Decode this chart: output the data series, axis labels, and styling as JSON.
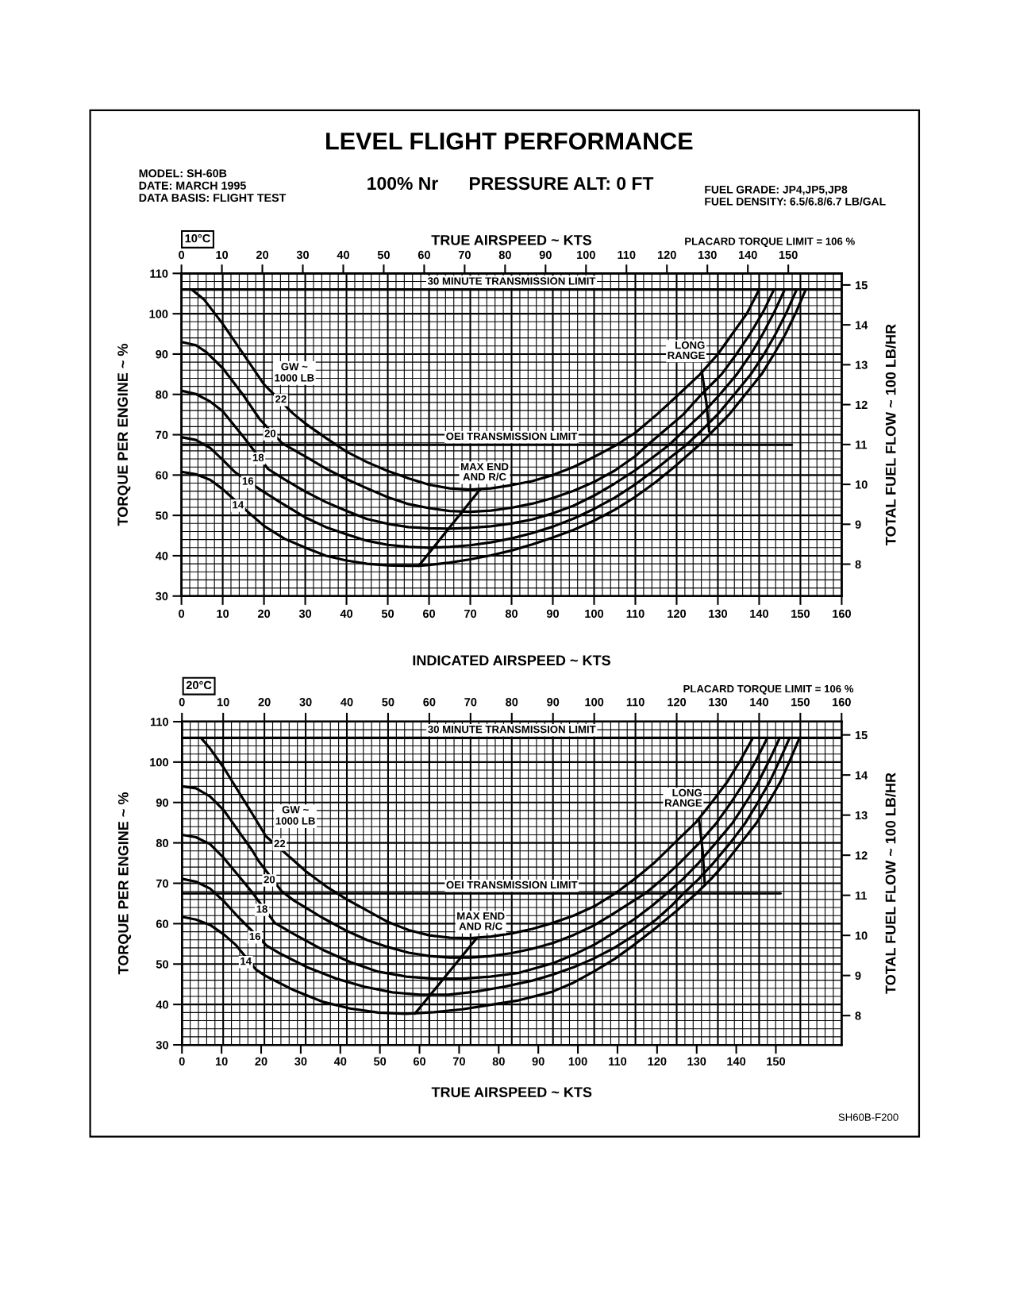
{
  "chart_data": [
    {
      "type": "line",
      "title": "LEVEL FLIGHT PERFORMANCE",
      "subtitle": "100% Nr      PRESSURE ALT: 0 FT",
      "xlabel": "INDICATED AIRSPEED ~ KTS",
      "x2label": "TRUE AIRSPEED ~ KTS",
      "ylabel": "TORQUE PER ENGINE ~ %",
      "y2label": "TOTAL FUEL FLOW ~ 100 LB/HR",
      "xlim": [
        0,
        160
      ],
      "xticks": [
        0,
        10,
        20,
        30,
        40,
        50,
        60,
        70,
        80,
        90,
        100,
        110,
        120,
        130,
        140,
        150,
        160
      ],
      "x2lim": [
        0,
        163.2
      ],
      "x2ticks": [
        0,
        10,
        20,
        30,
        40,
        50,
        60,
        70,
        80,
        90,
        100,
        110,
        120,
        130,
        140,
        150
      ],
      "ylim": [
        30,
        110
      ],
      "yticks": [
        30,
        40,
        50,
        60,
        70,
        80,
        90,
        100,
        110
      ],
      "y2lim": [
        7.2,
        15.29
      ],
      "y2ticks": [
        8,
        9,
        10,
        11,
        12,
        13,
        14,
        15
      ],
      "grid": true,
      "ref_lines": [
        {
          "axis": "y",
          "value": 106,
          "label": "30 MINUTE TRANSMISSION LIMIT",
          "color": "#000000"
        }
      ],
      "series": [
        {
          "color": "#000000",
          "x": [
            0,
            3.5,
            7,
            10,
            11.2,
            16.3,
            20,
            25,
            30,
            35,
            40,
            45,
            50,
            55,
            57.5,
            60,
            65,
            70,
            75,
            80,
            85,
            90,
            95,
            100,
            105,
            110,
            115,
            120,
            125.5,
            128.7,
            132.7,
            136.5,
            140.6,
            143.6,
            146.4,
            149,
            151.3
          ],
          "values": [
            60.8,
            60.2,
            58.8,
            56.5,
            55.4,
            50.7,
            47.4,
            44.2,
            42,
            40,
            38.8,
            38,
            37.6,
            37.5,
            37.5,
            37.7,
            38.3,
            39.1,
            40.1,
            41.3,
            42.8,
            44.5,
            46.4,
            48.7,
            51.4,
            54.6,
            58.3,
            62.5,
            67.5,
            70.8,
            75,
            79.8,
            85,
            90,
            95,
            100.5,
            106
          ]
        },
        {
          "color": "#000000",
          "x": [
            0,
            3.5,
            7,
            10,
            13,
            19.2,
            24,
            30,
            35,
            40,
            45,
            50,
            55,
            60,
            65,
            70,
            75,
            80,
            85,
            90,
            95,
            100,
            105,
            110,
            115,
            119,
            122.4,
            126,
            129.9,
            134,
            138,
            141.2,
            144,
            146.7,
            149.1
          ],
          "values": [
            69.4,
            68.7,
            66.7,
            63.8,
            60.7,
            56.3,
            53.2,
            49.5,
            47.1,
            45.3,
            43.7,
            42.7,
            42.2,
            42.0,
            42.2,
            42.6,
            43.3,
            44.3,
            45.6,
            47.2,
            49.2,
            51.6,
            54.4,
            57.7,
            61.5,
            64.8,
            67.5,
            71,
            75,
            80,
            85,
            90,
            95,
            100.5,
            106
          ]
        },
        {
          "color": "#000000",
          "x": [
            0,
            3.5,
            7,
            10,
            15,
            21,
            25,
            30,
            35,
            40,
            45,
            50,
            55,
            60,
            65,
            70,
            75,
            80,
            85,
            90,
            95,
            100,
            105,
            110,
            114,
            118.2,
            122,
            126,
            130.5,
            134.6,
            138,
            140.9,
            143.7,
            146.2
          ],
          "values": [
            80.9,
            80.1,
            78.2,
            75.8,
            69.5,
            61.5,
            58.9,
            55.9,
            53.3,
            51.1,
            49.1,
            47.9,
            47.1,
            46.8,
            46.7,
            46.9,
            47.3,
            48,
            49,
            50.5,
            52.4,
            54.9,
            57.9,
            61.2,
            64.2,
            67.5,
            71.2,
            75,
            80,
            85,
            90,
            95,
            100.5,
            106
          ]
        },
        {
          "color": "#000000",
          "x": [
            0,
            3.5,
            6,
            10,
            15,
            19,
            24.5,
            30,
            35,
            40,
            45,
            50,
            55,
            60,
            65,
            70,
            75,
            80,
            85,
            90,
            95,
            100,
            105,
            110,
            113,
            117,
            121.6,
            126,
            130.9,
            134.5,
            137.8,
            141,
            143.6
          ],
          "values": [
            93,
            92.2,
            90.5,
            86.5,
            79.8,
            73.8,
            67.8,
            64.6,
            61.6,
            59,
            56.7,
            54.5,
            52.8,
            51.8,
            51.1,
            50.9,
            51.2,
            51.9,
            52.9,
            54.3,
            56.1,
            58.3,
            61.1,
            64.7,
            67.5,
            71,
            75,
            80,
            85,
            90,
            95,
            100.5,
            106
          ]
        },
        {
          "color": "#000000",
          "x": [
            2.5,
            5.5,
            10,
            15,
            20,
            27,
            30,
            35,
            40,
            45,
            50,
            55,
            60,
            65,
            70,
            75,
            80,
            85,
            90,
            95,
            100,
            105.5,
            110,
            115.2,
            120,
            125.7,
            130,
            133.5,
            137,
            140
          ],
          "values": [
            106,
            103.5,
            97.5,
            90,
            82.5,
            75.3,
            72.8,
            69.2,
            65.8,
            63.2,
            61,
            59.2,
            57.6,
            56.7,
            56.4,
            56.7,
            57.5,
            58.5,
            60,
            62,
            64.5,
            67.5,
            70.5,
            75,
            79.5,
            85,
            90,
            95,
            100,
            106
          ]
        },
        {
          "name": "OEI TRANSMISSION LIMIT",
          "color": "#000000",
          "x": [
            0,
            147.9
          ],
          "values": [
            67.5,
            67.5
          ]
        },
        {
          "name": "MAX END\nAND R/C",
          "color": "#000000",
          "x": [
            57.5,
            72.4
          ],
          "values": [
            37.5,
            56.5
          ]
        },
        {
          "name": "LONG\nRANGE",
          "color": "#000000",
          "x": [
            126.1,
            127.2,
            127.9
          ],
          "values": [
            85.8,
            78,
            70.8
          ]
        }
      ],
      "annotations": [
        "MODEL: SH-60B\nDATE: MARCH 1995\nDATA BASIS: FLIGHT TEST",
        "FUEL GRADE: JP4,JP5,JP8\nFUEL DENSITY: 6.5/6.8/6.7 LB/GAL",
        "10°C",
        "PLACARD TORQUE LIMIT = 106 %",
        "GW ~\n1000 LB",
        {
          "text": "22",
          "x": 24.1,
          "y": 78.6
        },
        {
          "text": "20",
          "x": 21.5,
          "y": 70.1
        },
        {
          "text": "18",
          "x": 18.6,
          "y": 64.1
        },
        {
          "text": "16",
          "x": 16.1,
          "y": 58.3
        },
        {
          "text": "14",
          "x": 13.7,
          "y": 52.4
        }
      ]
    },
    {
      "type": "line",
      "x2label": "TRUE AIRSPEED ~ KTS",
      "ylabel": "TORQUE PER ENGINE ~ %",
      "y2label": "TOTAL FUEL FLOW ~ 100 LB/HR",
      "xlim": [
        0,
        160
      ],
      "xticks": [
        0,
        10,
        20,
        30,
        40,
        50,
        60,
        70,
        80,
        90,
        100,
        110,
        120,
        130,
        140,
        150,
        160
      ],
      "x2lim": [
        0,
        166.6
      ],
      "x2ticks": [
        0,
        10,
        20,
        30,
        40,
        50,
        60,
        70,
        80,
        90,
        100,
        110,
        120,
        130,
        140,
        150
      ],
      "ylim": [
        30,
        110
      ],
      "yticks": [
        30,
        40,
        50,
        60,
        70,
        80,
        90,
        100,
        110
      ],
      "y2lim": [
        7.27,
        15.33
      ],
      "y2ticks": [
        8,
        9,
        10,
        11,
        12,
        13,
        14,
        15
      ],
      "grid": true,
      "ref_lines": [
        {
          "axis": "y",
          "value": 106,
          "label": "30 MINUTE TRANSMISSION LIMIT",
          "color": "#000000"
        }
      ],
      "series": [
        {
          "color": "#000000",
          "x": [
            0,
            3.4,
            6.8,
            10.2,
            13,
            18,
            20.4,
            27.2,
            34,
            40.8,
            47.6,
            54.4,
            61.2,
            68,
            74.8,
            81.6,
            89.7,
            95,
            100,
            105,
            110,
            115,
            120,
            124.8,
            128.3,
            131.8,
            135.6,
            139.4,
            142.3,
            145.1,
            147.5,
            149.8
          ],
          "values": [
            61.7,
            61,
            59.7,
            57.3,
            54.8,
            48.6,
            47,
            43.5,
            40.7,
            39,
            38,
            37.7,
            38.1,
            38.8,
            39.9,
            41,
            43.1,
            45.4,
            48.2,
            51.3,
            55,
            59,
            63.2,
            67.5,
            71,
            75,
            80,
            85,
            90,
            95,
            100.5,
            106
          ]
        },
        {
          "color": "#000000",
          "x": [
            0,
            3.4,
            6.8,
            10.2,
            13.6,
            20.5,
            23.8,
            30.6,
            37.4,
            44.2,
            51,
            57.8,
            64.6,
            71.4,
            78.2,
            85,
            90,
            95,
            100,
            105,
            110,
            115,
            118.5,
            121.7,
            125.3,
            128.9,
            133,
            136.7,
            139.7,
            142.5,
            145,
            147.4
          ],
          "values": [
            71.1,
            70.4,
            68.7,
            65.5,
            61.7,
            54.6,
            52.6,
            49.1,
            46.4,
            44.4,
            43,
            42.4,
            42.4,
            43.2,
            44.4,
            45.9,
            47.4,
            49.2,
            51.4,
            54.1,
            57.3,
            61,
            64.2,
            67.5,
            71,
            75,
            80,
            85,
            90,
            95,
            100.5,
            106
          ]
        },
        {
          "color": "#000000",
          "x": [
            0,
            3.4,
            6.8,
            10.2,
            13.6,
            17,
            22.5,
            27.2,
            34,
            40.8,
            47.6,
            54.4,
            61.2,
            68,
            74.8,
            81.6,
            90,
            95,
            100,
            105,
            110,
            114,
            117.6,
            121.5,
            125.3,
            129.5,
            133.6,
            136.8,
            139.8,
            142.5,
            145
          ],
          "values": [
            82,
            81.4,
            79.7,
            76.2,
            72,
            67.8,
            60.2,
            57.4,
            53.6,
            50.5,
            48.1,
            46.9,
            46.4,
            46.4,
            46.9,
            47.8,
            50.2,
            52.3,
            54.8,
            57.9,
            61.3,
            64.4,
            67.5,
            71,
            75,
            80,
            85,
            90,
            95,
            100.5,
            106
          ]
        },
        {
          "color": "#000000",
          "x": [
            0,
            3.4,
            6.8,
            10.2,
            13.6,
            17,
            18.6,
            24.2,
            27.2,
            30,
            34,
            40,
            45,
            50,
            55,
            60,
            65,
            70,
            75,
            80,
            85,
            90,
            95,
            100,
            105,
            109,
            112.4,
            116.5,
            120.7,
            125.5,
            129.7,
            133.2,
            136.4,
            139.3,
            142
          ],
          "values": [
            94,
            93.5,
            91.5,
            88,
            83.1,
            78.2,
            75.5,
            68,
            65.7,
            64,
            61.5,
            58.2,
            55.9,
            54.2,
            52.8,
            52,
            51.6,
            51.6,
            52,
            52.7,
            53.8,
            55.2,
            57.2,
            59.6,
            62.7,
            65.3,
            67.5,
            71,
            75,
            80,
            85,
            90,
            95,
            100.5,
            106
          ]
        },
        {
          "color": "#000000",
          "x": [
            4.6,
            6.8,
            10.2,
            13.6,
            17,
            20.4,
            26.5,
            30,
            35,
            40,
            45,
            50,
            55,
            60,
            65,
            70,
            75,
            80,
            85,
            90,
            95,
            100,
            105.1,
            110,
            114.5,
            120,
            124.6,
            128.5,
            132.2,
            135.5,
            138.5
          ],
          "values": [
            106,
            103.4,
            98.5,
            92.9,
            87.3,
            81.6,
            76.2,
            73,
            69.2,
            66,
            63.2,
            60.4,
            58.4,
            57.1,
            56.5,
            56.4,
            56.8,
            57.6,
            58.7,
            60.2,
            62,
            64.3,
            67.5,
            71.2,
            75,
            80.5,
            85,
            90,
            95,
            100.5,
            106
          ]
        },
        {
          "name": "OEI TRANSMISSION LIMIT",
          "color": "#000000",
          "x": [
            0,
            145.2
          ],
          "values": [
            67.5,
            67.5
          ]
        },
        {
          "name": "MAX END\nAND R/C",
          "color": "#000000",
          "x": [
            56.5,
            71.4
          ],
          "values": [
            37.7,
            56.3
          ]
        },
        {
          "name": "LONG\nRANGE",
          "color": "#000000",
          "x": [
            125.4,
            126.3,
            126.8
          ],
          "values": [
            86,
            78,
            70.0
          ]
        }
      ],
      "annotations": [
        "20°C",
        "PLACARD TORQUE LIMIT = 106 %",
        "GW ~\n1000 LB",
        {
          "text": "22",
          "x": 23.7,
          "y": 79.6
        },
        {
          "text": "20",
          "x": 21.2,
          "y": 70.7
        },
        {
          "text": "18",
          "x": 19.4,
          "y": 63.4
        },
        {
          "text": "16",
          "x": 17.7,
          "y": 56.6
        },
        {
          "text": "14",
          "x": 15.5,
          "y": 50.5
        },
        "SH60B-F200"
      ]
    }
  ]
}
